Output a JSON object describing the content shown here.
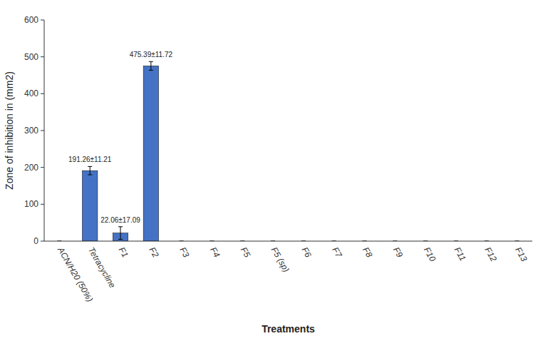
{
  "chart_data": {
    "type": "bar",
    "categories": [
      "ACN/H20 (50%)",
      "Tetracycline",
      "F1",
      "F2",
      "F3",
      "F4",
      "F5",
      "F5 (sp)",
      "F6",
      "F7",
      "F8",
      "F9",
      "F10",
      "F11",
      "F12",
      "F13"
    ],
    "values": [
      0,
      191.26,
      22.06,
      475.39,
      0,
      0,
      0,
      0,
      0,
      0,
      0,
      0,
      0,
      0,
      0,
      0
    ],
    "errors": [
      0,
      11.21,
      17.09,
      11.72,
      0,
      0,
      0,
      0,
      0,
      0,
      0,
      0,
      0,
      0,
      0,
      0
    ],
    "color": "#4472C4",
    "annotations": [
      {
        "label": "191.26±11.21",
        "category": "Tetracycline"
      },
      {
        "label": "22.06±17.09",
        "category": "F1"
      },
      {
        "label": "475.39±11.72",
        "category": "F2"
      }
    ],
    "ylabel": "Zone of inhibition in (mm2)",
    "xlabel": "Treatments",
    "ylim": [
      0,
      600
    ],
    "yticks": [
      0,
      100,
      200,
      300,
      400,
      500,
      600
    ],
    "grid": false
  }
}
